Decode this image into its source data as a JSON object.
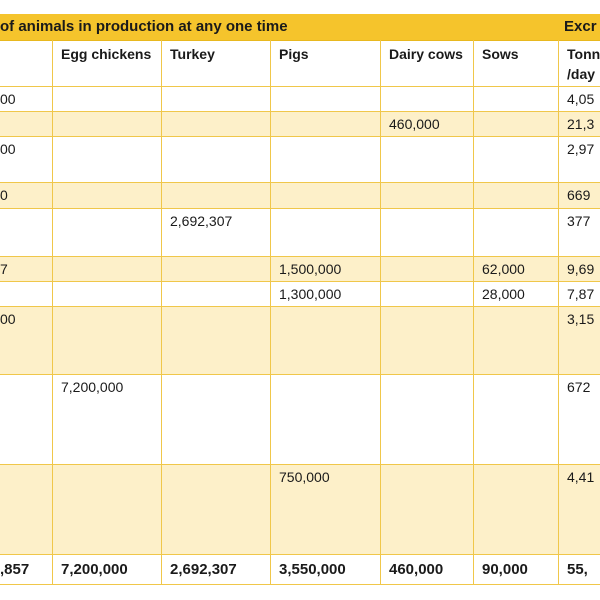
{
  "header": {
    "title_partial": "of animals in production at any one time",
    "excretion_partial": "Excr"
  },
  "columns": {
    "c1": "Egg chickens",
    "c2": "Turkey",
    "c3": "Pigs",
    "c4": "Dairy cows",
    "c5": "Sows",
    "c6": "Tonn /day"
  },
  "rows": [
    {
      "c0": "00",
      "c1": "",
      "c2": "",
      "c3": "",
      "c4": "",
      "c5": "",
      "c6": "4,05"
    },
    {
      "c0": "",
      "c1": "",
      "c2": "",
      "c3": "",
      "c4": "460,000",
      "c5": "",
      "c6": "21,3"
    },
    {
      "c0": "00",
      "c1": "",
      "c2": "",
      "c3": "",
      "c4": "",
      "c5": "",
      "c6": "2,97"
    },
    {
      "c0": "0",
      "c1": "",
      "c2": "",
      "c3": "",
      "c4": "",
      "c5": "",
      "c6": "669"
    },
    {
      "c0": "",
      "c1": "",
      "c2": "2,692,307",
      "c3": "",
      "c4": "",
      "c5": "",
      "c6": "377"
    },
    {
      "c0": "7",
      "c1": "",
      "c2": "",
      "c3": "1,500,000",
      "c4": "",
      "c5": "62,000",
      "c6": "9,69"
    },
    {
      "c0": "",
      "c1": "",
      "c2": "",
      "c3": "1,300,000",
      "c4": "",
      "c5": "28,000",
      "c6": "7,87"
    },
    {
      "c0": "00",
      "c1": "",
      "c2": "",
      "c3": "",
      "c4": "",
      "c5": "",
      "c6": "3,15"
    },
    {
      "c0": "",
      "c1": "7,200,000",
      "c2": "",
      "c3": "",
      "c4": "",
      "c5": "",
      "c6": "672"
    },
    {
      "c0": "",
      "c1": "",
      "c2": "",
      "c3": "750,000",
      "c4": "",
      "c5": "",
      "c6": "4,41"
    }
  ],
  "totals": {
    "c0": ",857",
    "c1": "7,200,000",
    "c2": "2,692,307",
    "c3": "3,550,000",
    "c4": "460,000",
    "c5": "90,000",
    "c6": "55,"
  },
  "colors": {
    "header_band": "#f5c42c",
    "shaded_row": "#fdf0c9",
    "grid_line": "#f0c74a"
  }
}
